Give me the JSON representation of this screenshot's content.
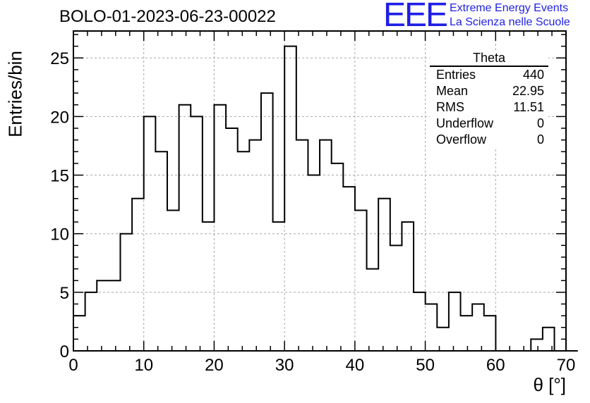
{
  "chart_data": {
    "type": "bar",
    "style": "step-histogram",
    "title": "BOLO-01-2023-06-23-00022",
    "xlabel": "θ [°]",
    "ylabel": "Entries/bin",
    "xlim": [
      0,
      70
    ],
    "ylim": [
      0,
      27.3
    ],
    "grid": true,
    "bin_width": 1.667,
    "bin_edges_start": 0,
    "values": [
      3,
      5,
      6,
      6,
      10,
      13,
      20,
      17,
      12,
      21,
      20,
      11,
      21,
      19,
      17,
      18,
      22,
      11,
      26,
      18,
      15,
      18,
      16,
      14,
      12,
      7,
      13,
      9,
      11,
      5,
      4,
      2,
      5,
      3,
      4,
      3,
      0,
      0,
      0,
      1,
      2,
      0,
      0
    ],
    "x_ticks": [
      "0",
      "10",
      "20",
      "30",
      "40",
      "50",
      "60",
      "70"
    ],
    "y_ticks": [
      "0",
      "5",
      "10",
      "15",
      "20",
      "25"
    ],
    "x_tick_values": [
      0,
      10,
      20,
      30,
      40,
      50,
      60,
      70
    ],
    "y_tick_values": [
      0,
      5,
      10,
      15,
      20,
      25
    ]
  },
  "logo": {
    "mark": "EEE",
    "line1": "Extreme Energy Events",
    "line2": "La Scienza nelle Scuole",
    "color": "#1f1fe6"
  },
  "stats": {
    "title": "Theta",
    "rows": [
      {
        "label": "Entries",
        "value": "440"
      },
      {
        "label": "Mean",
        "value": "22.95"
      },
      {
        "label": "RMS",
        "value": "11.51"
      },
      {
        "label": "Underflow",
        "value": "0"
      },
      {
        "label": "Overflow",
        "value": "0"
      }
    ]
  }
}
